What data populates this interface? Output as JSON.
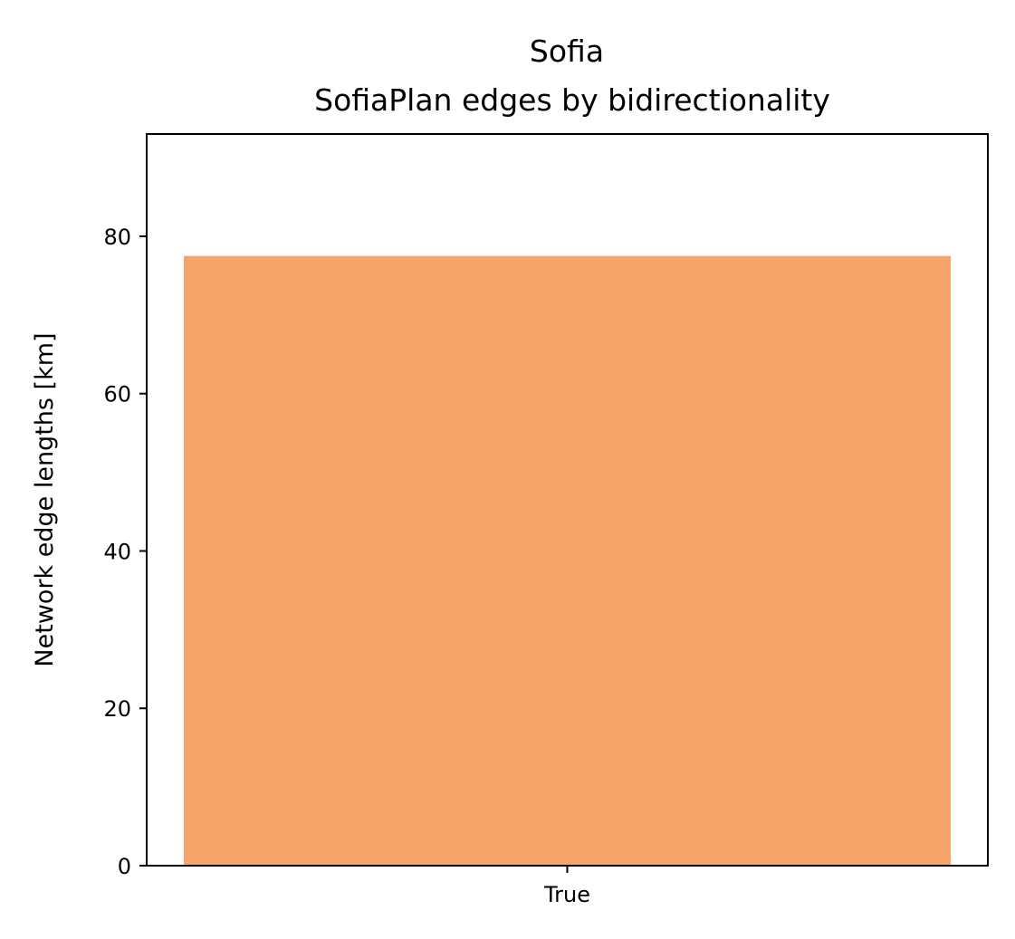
{
  "chart_data": {
    "type": "bar",
    "title": "Sofia",
    "subtitle": "SofiaPlan edges by bidirectionality",
    "xlabel": "",
    "ylabel": "Network edge lengths [km]",
    "categories": [
      "True"
    ],
    "values": [
      77.5
    ],
    "ylim": [
      0,
      93
    ],
    "yticks": [
      0,
      20,
      40,
      60,
      80
    ],
    "ytick_labels": [
      "0",
      "20",
      "40",
      "60",
      "80"
    ],
    "bar_color": "#f7a46a",
    "grid": false,
    "legend": "none"
  }
}
